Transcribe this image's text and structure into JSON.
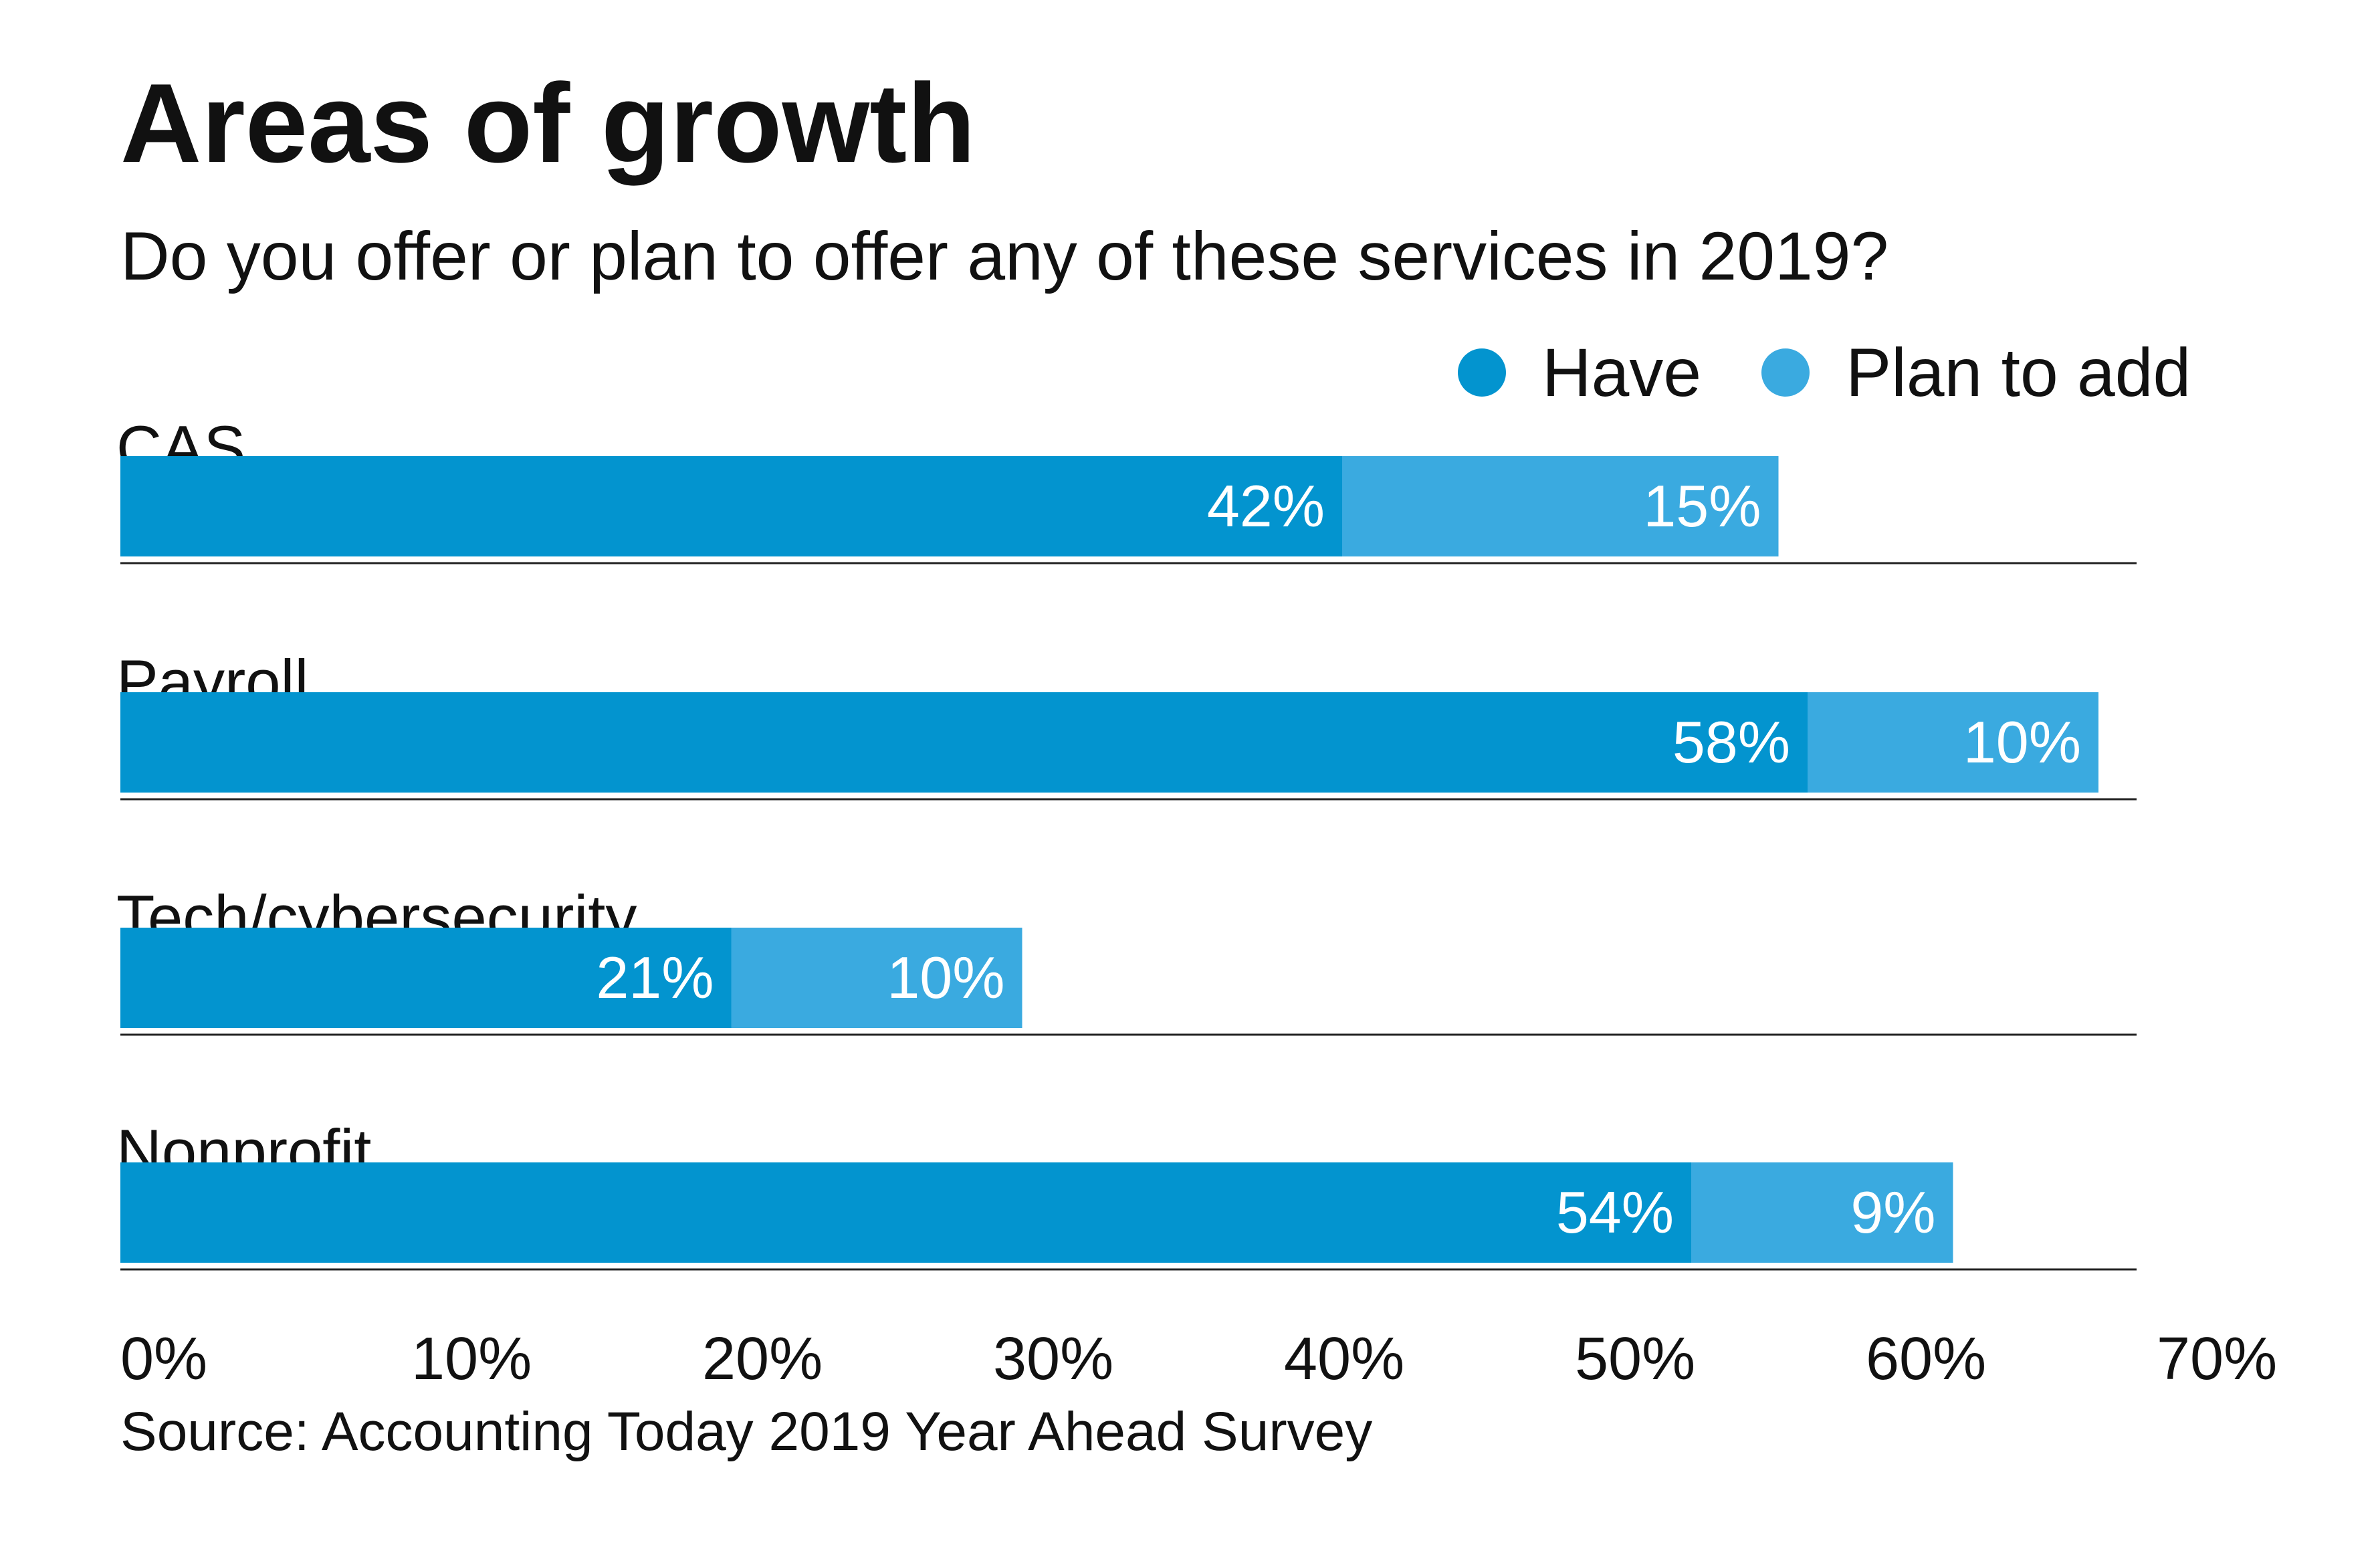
{
  "chart_data": {
    "type": "bar",
    "orientation": "horizontal",
    "stacked": true,
    "title": "Areas of growth",
    "subtitle": "Do you offer or plan to offer any of these services in 2019?",
    "categories": [
      "CAS",
      "Payroll",
      "Tech/cybersecurity",
      "Nonprofit"
    ],
    "series": [
      {
        "name": "Have",
        "values": [
          42,
          58,
          21,
          54
        ],
        "labels": [
          "42%",
          "58%",
          "21%",
          "54%"
        ],
        "color": "#0394cf"
      },
      {
        "name": "Plan to add",
        "values": [
          15,
          10,
          10,
          9
        ],
        "labels": [
          "15%",
          "10%",
          "10%",
          "9%"
        ],
        "color": "#3aaae0"
      }
    ],
    "xlim": [
      0,
      70
    ],
    "x_ticks": [
      0,
      10,
      20,
      30,
      40,
      50,
      60,
      70
    ],
    "x_tick_labels": [
      "0%",
      "10%",
      "20%",
      "30%",
      "40%",
      "50%",
      "60%",
      "70%"
    ],
    "grid": false,
    "legend_position": "top-right",
    "source": "Source: Accounting Today 2019 Year Ahead Survey"
  }
}
